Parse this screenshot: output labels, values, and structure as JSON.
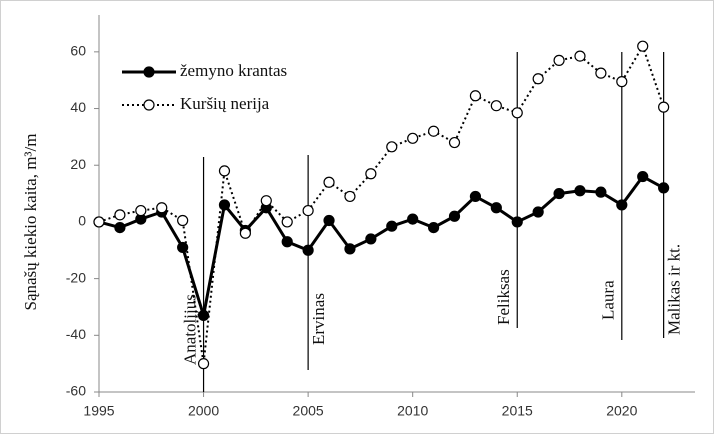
{
  "chart_data": {
    "type": "line",
    "ylabel": "Sąnašų kiekio kaita, m³/m",
    "x": [
      1995,
      1996,
      1997,
      1998,
      1999,
      2000,
      2001,
      2002,
      2003,
      2004,
      2005,
      2006,
      2007,
      2008,
      2009,
      2010,
      2011,
      2012,
      2013,
      2014,
      2015,
      2016,
      2017,
      2018,
      2019,
      2020,
      2021,
      2022
    ],
    "series": [
      {
        "name": "žemyno krantas",
        "color": "#000000",
        "values": [
          0,
          -2,
          1,
          3.5,
          -9,
          -33,
          6,
          -3,
          5,
          -7,
          -10,
          0.5,
          -9.5,
          -6,
          -1.5,
          1,
          -2,
          2,
          9,
          5,
          0,
          3.5,
          10,
          11,
          10.5,
          6,
          16,
          12
        ]
      },
      {
        "name": "Kuršių nerija",
        "color": "#000000",
        "values": [
          0,
          2.5,
          4,
          5,
          0.5,
          -50,
          18,
          -4,
          7.5,
          0,
          4,
          14,
          9,
          17,
          26.5,
          29.5,
          32,
          28,
          44.5,
          41,
          38.5,
          50.5,
          57,
          58.5,
          52.5,
          49.5,
          62,
          40.5
        ]
      }
    ],
    "annotations": [
      {
        "text": "Anatolijus",
        "x": 2000
      },
      {
        "text": "Ervinas",
        "x": 2005
      },
      {
        "text": "Feliksas",
        "x": 2015
      },
      {
        "text": "Laura",
        "x": 2020
      },
      {
        "text": "Malikas ir kt.",
        "x": 2022
      }
    ],
    "xlim": [
      1995,
      2023.5
    ],
    "xticks": [
      1995,
      2000,
      2005,
      2010,
      2015,
      2020
    ],
    "ylim": [
      -60,
      73
    ],
    "yticks": [
      -60,
      -40,
      -20,
      0,
      20,
      40,
      60
    ],
    "legend": "upper left"
  }
}
